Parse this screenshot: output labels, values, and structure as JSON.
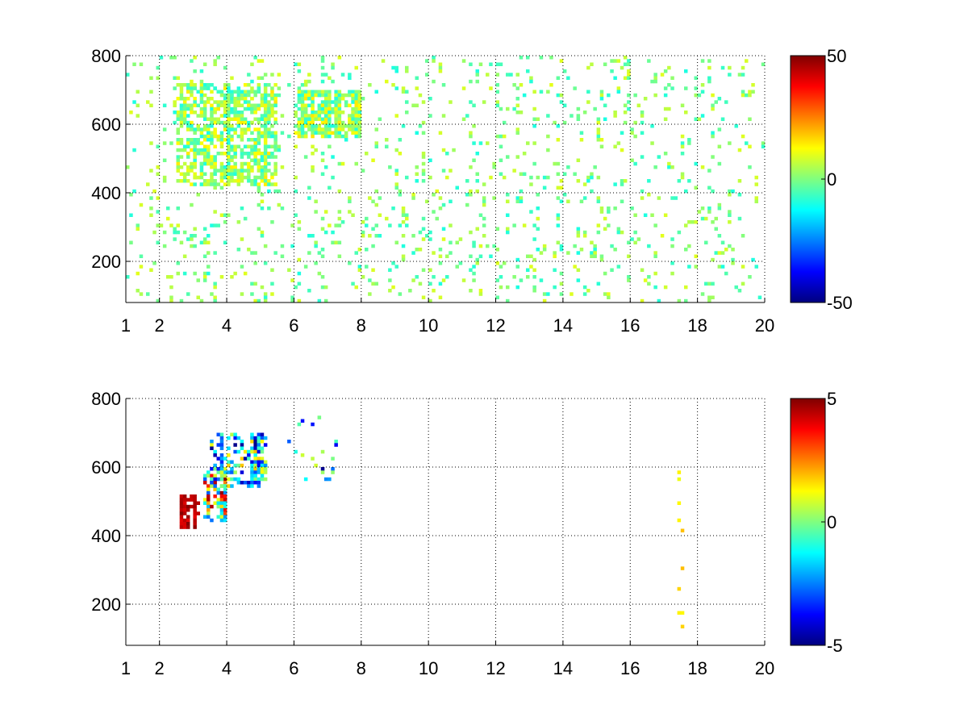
{
  "chart_data": [
    {
      "type": "heatmap",
      "panel": "top",
      "x_ticks": [
        "1",
        "2",
        "4",
        "6",
        "8",
        "10",
        "12",
        "14",
        "16",
        "18",
        "20"
      ],
      "x_tick_values": [
        1,
        2,
        4,
        6,
        8,
        10,
        12,
        14,
        16,
        18,
        20
      ],
      "y_ticks": [
        "200",
        "400",
        "600",
        "800"
      ],
      "y_tick_values": [
        200,
        400,
        600,
        800
      ],
      "xlim": [
        1,
        20
      ],
      "ylim": [
        80,
        800
      ],
      "grid": true,
      "colormap": "jet",
      "colorbar": {
        "ticks": [
          "50",
          "0",
          "-50"
        ],
        "tick_values": [
          50,
          0,
          -50
        ],
        "range": [
          -50,
          50
        ],
        "placement": "right"
      },
      "description_regions": [
        {
          "x": [
            2.5,
            5.5
          ],
          "y": [
            420,
            720
          ],
          "value_range": [
            -10,
            15
          ],
          "density": "high"
        },
        {
          "x": [
            6,
            8
          ],
          "y": [
            560,
            700
          ],
          "value_range": [
            -10,
            15
          ],
          "density": "high"
        },
        {
          "x": [
            1,
            20
          ],
          "y": [
            80,
            800
          ],
          "value_range": [
            -10,
            10
          ],
          "density": "sparse"
        }
      ]
    },
    {
      "type": "heatmap",
      "panel": "bottom",
      "x_ticks": [
        "1",
        "2",
        "4",
        "6",
        "8",
        "10",
        "12",
        "14",
        "16",
        "18",
        "20"
      ],
      "x_tick_values": [
        1,
        2,
        4,
        6,
        8,
        10,
        12,
        14,
        16,
        18,
        20
      ],
      "y_ticks": [
        "200",
        "400",
        "600",
        "800"
      ],
      "y_tick_values": [
        200,
        400,
        600,
        800
      ],
      "xlim": [
        1,
        20
      ],
      "ylim": [
        80,
        800
      ],
      "grid": true,
      "colormap": "jet",
      "colorbar": {
        "ticks": [
          "5",
          "0",
          "-5"
        ],
        "tick_values": [
          5,
          0,
          -5
        ],
        "range": [
          -5,
          5
        ],
        "placement": "right"
      },
      "description_regions": [
        {
          "x": [
            2.6,
            3.2
          ],
          "y": [
            420,
            520
          ],
          "value_range": [
            4,
            5
          ],
          "density": "medium"
        },
        {
          "x": [
            3.3,
            4.0
          ],
          "y": [
            440,
            600
          ],
          "value_range": [
            -3,
            5
          ],
          "density": "medium"
        },
        {
          "x": [
            3.5,
            5.2
          ],
          "y": [
            540,
            700
          ],
          "value_range": [
            -5,
            2
          ],
          "density": "medium"
        },
        {
          "x": [
            5.8,
            7.5
          ],
          "y": [
            560,
            760
          ],
          "value_range": [
            -5,
            1
          ],
          "density": "sparse"
        },
        {
          "x": [
            17.4,
            17.6
          ],
          "y": [
            120,
            600
          ],
          "value_range": [
            1,
            2
          ],
          "density": "sparse"
        }
      ]
    }
  ]
}
